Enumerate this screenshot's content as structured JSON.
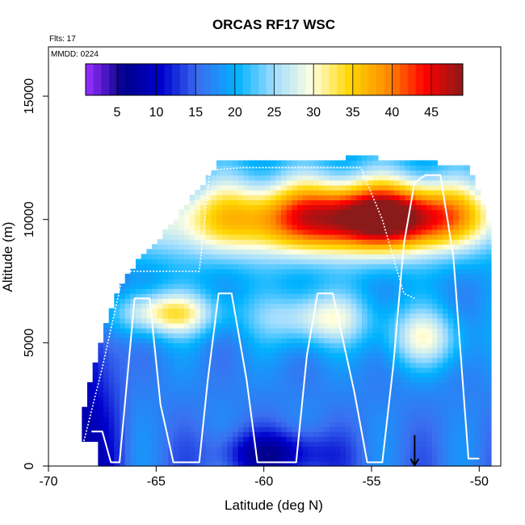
{
  "chart_data": {
    "type": "heatmap",
    "title": "ORCAS RF17 WSC",
    "xlabel": "Latitude (deg N)",
    "ylabel": "Altitude (m)",
    "annotations": [
      "Flts: 17",
      "MMDD: 0224"
    ],
    "xlim": [
      -70,
      -49
    ],
    "ylim": [
      0,
      17000
    ],
    "x_ticks": [
      -70,
      -65,
      -60,
      -55,
      -50
    ],
    "y_ticks": [
      0,
      5000,
      10000,
      15000
    ],
    "colorbar": {
      "range": [
        1,
        49
      ],
      "ticks": [
        5,
        10,
        15,
        20,
        25,
        30,
        35,
        40,
        45
      ],
      "colors": [
        "#9b30ff",
        "#00008b",
        "#0000cd",
        "#3b6ff0",
        "#00b2ff",
        "#9fdcff",
        "#ffffe0",
        "#ffd700",
        "#ff8c00",
        "#ff0000",
        "#8b1a1a"
      ]
    },
    "domain": {
      "x": [
        -68.7,
        -68.2,
        -67.5,
        -66.8,
        -66.0,
        -65.2,
        -64.2,
        -63.0,
        -62.0,
        -61.0,
        -59.0,
        -57.0,
        -55.5,
        -54.0,
        -52.0,
        -50.5,
        -49.6
      ],
      "top": [
        0,
        3000,
        5200,
        7000,
        8100,
        8800,
        9800,
        11200,
        12300,
        12300,
        12300,
        12300,
        12500,
        12300,
        12200,
        12000,
        10000
      ]
    },
    "jets": [
      {
        "x": -54.0,
        "y": 10100,
        "peak": 47,
        "sx": 4.5,
        "sy": 1400
      },
      {
        "x": -60.5,
        "y": 10000,
        "peak": 33,
        "sx": 6.0,
        "sy": 1600
      },
      {
        "x": -64.5,
        "y": 6200,
        "peak": 32,
        "sx": 2.5,
        "sy": 900
      },
      {
        "x": -57.5,
        "y": 6000,
        "peak": 29,
        "sx": 2.5,
        "sy": 1100
      },
      {
        "x": -52.5,
        "y": 5200,
        "peak": 28,
        "sx": 1.8,
        "sy": 1200
      }
    ],
    "surface_min": {
      "x": -59.5,
      "y": 500,
      "value": 6
    },
    "flight_track": {
      "x": [
        -68.0,
        -67.5,
        -67.1,
        -66.7,
        -66.0,
        -65.3,
        -64.8,
        -64.2,
        -63.0,
        -62.6,
        -62.1,
        -61.5,
        -60.8,
        -60.3,
        -58.5,
        -58.0,
        -57.5,
        -56.8,
        -55.8,
        -55.2,
        -54.5,
        -54.0,
        -53.5,
        -53.0,
        -52.5,
        -51.8,
        -51.2,
        -50.5,
        -50.0
      ],
      "y": [
        1400,
        1400,
        150,
        150,
        6800,
        6800,
        2500,
        150,
        150,
        3500,
        7000,
        7000,
        3500,
        150,
        150,
        4500,
        7000,
        7000,
        3000,
        150,
        150,
        4000,
        9000,
        11500,
        11800,
        11800,
        8500,
        300,
        300
      ]
    },
    "high_track": {
      "x": [
        -68.5,
        -67.5,
        -66.5,
        -65.5,
        -64.0,
        -63.0,
        -62.5,
        -61.0,
        -58.0,
        -55.5,
        -54.5,
        -53.5,
        -53.0
      ],
      "y": [
        500,
        4000,
        7900,
        7900,
        7900,
        7900,
        12000,
        12100,
        12100,
        12100,
        10000,
        7000,
        6800
      ]
    },
    "marker": {
      "x": -53.0,
      "y": 600,
      "label": "arrow"
    }
  }
}
